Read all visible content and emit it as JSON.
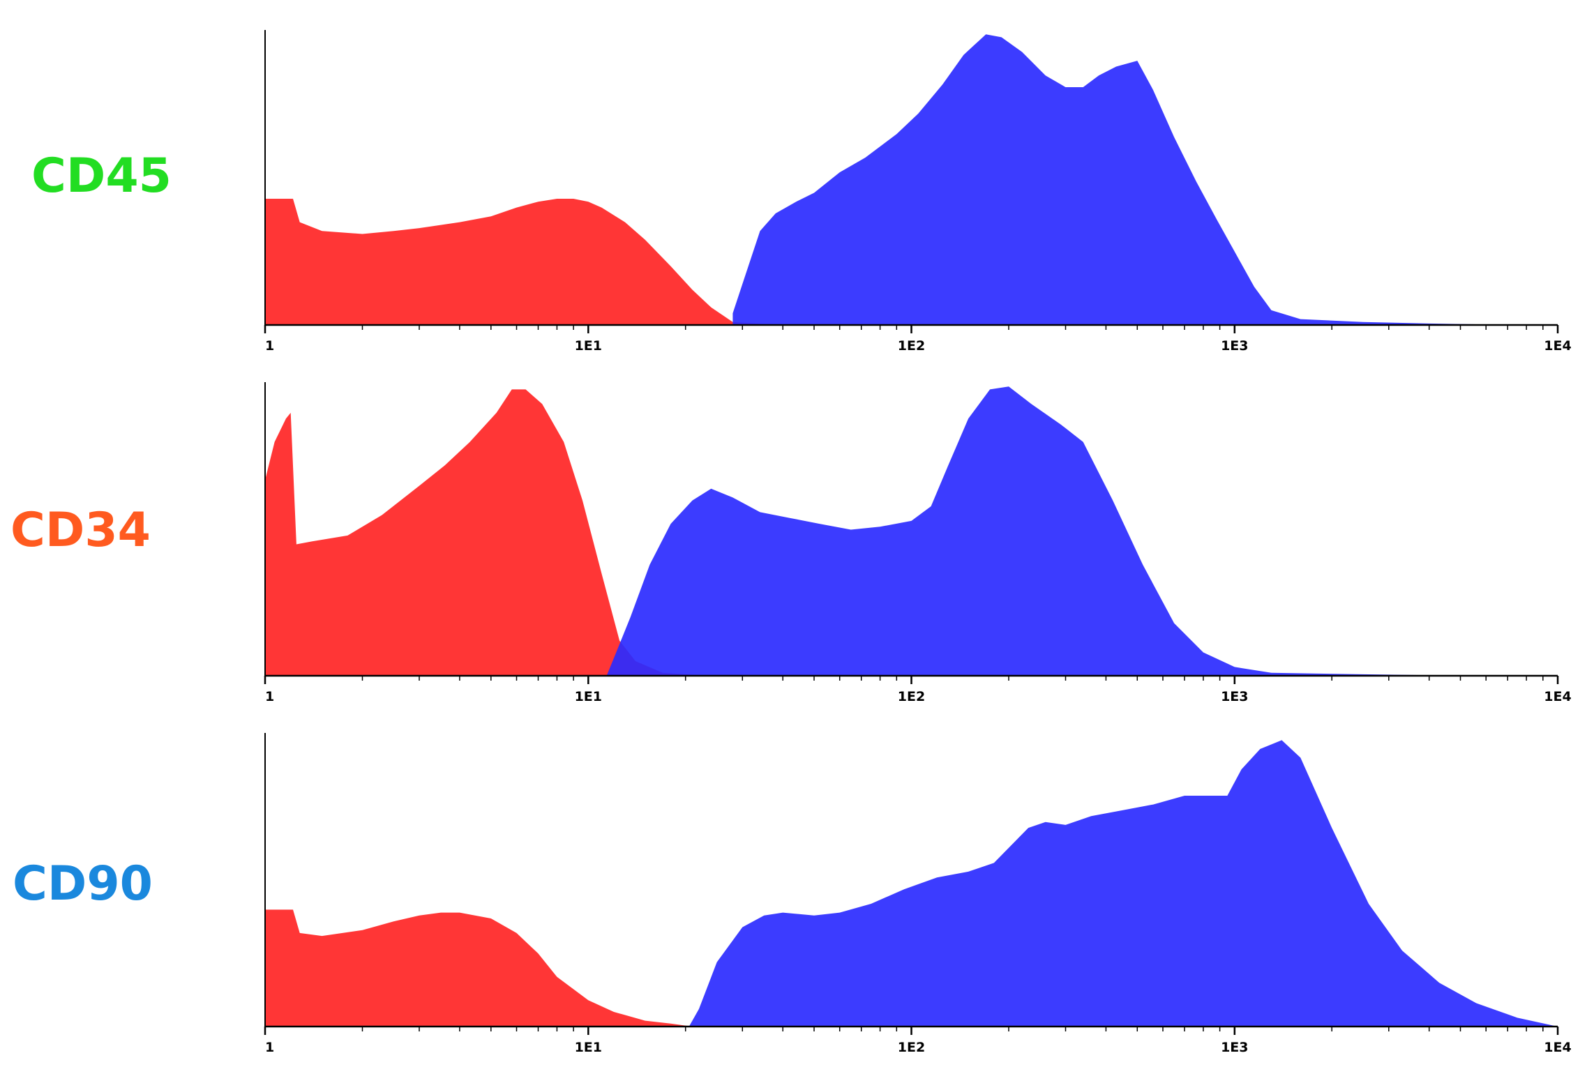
{
  "colors": {
    "isotype": "#ff2b2b",
    "marker": "#2b2bff",
    "axis": "#000000"
  },
  "x_ticks": [
    "1",
    "1E1",
    "1E2",
    "1E3",
    "1E4"
  ],
  "chart_data": [
    {
      "type": "area",
      "label": "CD45",
      "label_color": "#22dd22",
      "xscale": "log",
      "xlim": [
        1,
        10000
      ],
      "ylim": [
        0,
        1
      ],
      "x_ticks": [
        "1",
        "1E1",
        "1E2",
        "1E3",
        "1E4"
      ],
      "grid": false,
      "series": [
        {
          "color": "#ff2b2b",
          "points": [
            [
              1,
              0.43
            ],
            [
              1.22,
              0.43
            ],
            [
              1.28,
              0.35
            ],
            [
              1.5,
              0.32
            ],
            [
              2,
              0.31
            ],
            [
              2.5,
              0.32
            ],
            [
              3,
              0.33
            ],
            [
              4,
              0.35
            ],
            [
              5,
              0.37
            ],
            [
              6,
              0.4
            ],
            [
              7,
              0.42
            ],
            [
              8,
              0.43
            ],
            [
              9,
              0.43
            ],
            [
              10,
              0.42
            ],
            [
              11,
              0.4
            ],
            [
              13,
              0.35
            ],
            [
              15,
              0.29
            ],
            [
              18,
              0.2
            ],
            [
              21,
              0.12
            ],
            [
              24,
              0.06
            ],
            [
              28,
              0.01
            ],
            [
              35,
              0.003
            ],
            [
              50,
              0
            ]
          ]
        },
        {
          "color": "#2b2bff",
          "points": [
            [
              28,
              0
            ],
            [
              28,
              0.04
            ],
            [
              30,
              0.14
            ],
            [
              34,
              0.32
            ],
            [
              38,
              0.38
            ],
            [
              44,
              0.42
            ],
            [
              50,
              0.45
            ],
            [
              60,
              0.52
            ],
            [
              72,
              0.57
            ],
            [
              90,
              0.65
            ],
            [
              105,
              0.72
            ],
            [
              125,
              0.82
            ],
            [
              145,
              0.92
            ],
            [
              170,
              0.99
            ],
            [
              190,
              0.98
            ],
            [
              220,
              0.93
            ],
            [
              260,
              0.85
            ],
            [
              300,
              0.81
            ],
            [
              340,
              0.81
            ],
            [
              380,
              0.85
            ],
            [
              430,
              0.88
            ],
            [
              500,
              0.9
            ],
            [
              560,
              0.8
            ],
            [
              650,
              0.64
            ],
            [
              760,
              0.49
            ],
            [
              880,
              0.36
            ],
            [
              1000,
              0.25
            ],
            [
              1150,
              0.13
            ],
            [
              1300,
              0.05
            ],
            [
              1600,
              0.02
            ],
            [
              2500,
              0.01
            ],
            [
              4000,
              0.005
            ],
            [
              6000,
              0.002
            ],
            [
              10000,
              0
            ]
          ]
        }
      ]
    },
    {
      "type": "area",
      "label": "CD34",
      "label_color": "#ff5a1f",
      "xscale": "log",
      "xlim": [
        1,
        10000
      ],
      "ylim": [
        0,
        1
      ],
      "x_ticks": [
        "1",
        "1E1",
        "1E2",
        "1E3",
        "1E4"
      ],
      "grid": false,
      "series": [
        {
          "color": "#ff2b2b",
          "points": [
            [
              1,
              0.67
            ],
            [
              1.07,
              0.8
            ],
            [
              1.16,
              0.88
            ],
            [
              1.2,
              0.9
            ],
            [
              1.25,
              0.45
            ],
            [
              1.4,
              0.46
            ],
            [
              1.8,
              0.48
            ],
            [
              2.3,
              0.55
            ],
            [
              3,
              0.65
            ],
            [
              3.6,
              0.72
            ],
            [
              4.3,
              0.8
            ],
            [
              5.2,
              0.9
            ],
            [
              5.8,
              0.98
            ],
            [
              6.4,
              0.98
            ],
            [
              7.2,
              0.93
            ],
            [
              8.4,
              0.8
            ],
            [
              9.6,
              0.6
            ],
            [
              11,
              0.35
            ],
            [
              12.5,
              0.12
            ],
            [
              14,
              0.05
            ],
            [
              17,
              0.01
            ],
            [
              22,
              0.002
            ],
            [
              30,
              0
            ]
          ]
        },
        {
          "color": "#2b2bff",
          "points": [
            [
              11.4,
              0
            ],
            [
              12,
              0.06
            ],
            [
              13.5,
              0.2
            ],
            [
              15.5,
              0.38
            ],
            [
              18,
              0.52
            ],
            [
              21,
              0.6
            ],
            [
              24,
              0.64
            ],
            [
              28,
              0.61
            ],
            [
              34,
              0.56
            ],
            [
              42,
              0.54
            ],
            [
              52,
              0.52
            ],
            [
              65,
              0.5
            ],
            [
              80,
              0.51
            ],
            [
              100,
              0.53
            ],
            [
              115,
              0.58
            ],
            [
              130,
              0.72
            ],
            [
              150,
              0.88
            ],
            [
              175,
              0.98
            ],
            [
              200,
              0.99
            ],
            [
              235,
              0.93
            ],
            [
              290,
              0.86
            ],
            [
              340,
              0.8
            ],
            [
              420,
              0.6
            ],
            [
              520,
              0.38
            ],
            [
              650,
              0.18
            ],
            [
              800,
              0.08
            ],
            [
              1000,
              0.03
            ],
            [
              1300,
              0.01
            ],
            [
              2500,
              0.005
            ],
            [
              4000,
              0.002
            ],
            [
              6000,
              0.002
            ],
            [
              10000,
              0
            ]
          ]
        }
      ]
    },
    {
      "type": "area",
      "label": "CD90",
      "label_color": "#1a88dd",
      "xscale": "log",
      "xlim": [
        1,
        10000
      ],
      "ylim": [
        0,
        1
      ],
      "x_ticks": [
        "1",
        "1E1",
        "1E2",
        "1E3",
        "1E4"
      ],
      "grid": false,
      "series": [
        {
          "color": "#ff2b2b",
          "points": [
            [
              1,
              0.4
            ],
            [
              1.22,
              0.4
            ],
            [
              1.28,
              0.32
            ],
            [
              1.5,
              0.31
            ],
            [
              2,
              0.33
            ],
            [
              2.5,
              0.36
            ],
            [
              3,
              0.38
            ],
            [
              3.5,
              0.39
            ],
            [
              4,
              0.39
            ],
            [
              5,
              0.37
            ],
            [
              6,
              0.32
            ],
            [
              7,
              0.25
            ],
            [
              8,
              0.17
            ],
            [
              10,
              0.09
            ],
            [
              12,
              0.05
            ],
            [
              15,
              0.02
            ],
            [
              18,
              0.01
            ],
            [
              21,
              0
            ]
          ]
        },
        {
          "color": "#2b2bff",
          "points": [
            [
              20.5,
              0
            ],
            [
              22,
              0.06
            ],
            [
              25,
              0.22
            ],
            [
              30,
              0.34
            ],
            [
              35,
              0.38
            ],
            [
              40,
              0.39
            ],
            [
              50,
              0.38
            ],
            [
              60,
              0.39
            ],
            [
              75,
              0.42
            ],
            [
              95,
              0.47
            ],
            [
              120,
              0.51
            ],
            [
              150,
              0.53
            ],
            [
              180,
              0.56
            ],
            [
              230,
              0.68
            ],
            [
              260,
              0.7
            ],
            [
              300,
              0.69
            ],
            [
              360,
              0.72
            ],
            [
              450,
              0.74
            ],
            [
              560,
              0.76
            ],
            [
              700,
              0.79
            ],
            [
              850,
              0.79
            ],
            [
              950,
              0.79
            ],
            [
              1050,
              0.88
            ],
            [
              1200,
              0.95
            ],
            [
              1400,
              0.98
            ],
            [
              1600,
              0.92
            ],
            [
              2000,
              0.68
            ],
            [
              2600,
              0.42
            ],
            [
              3300,
              0.26
            ],
            [
              4300,
              0.15
            ],
            [
              5600,
              0.08
            ],
            [
              7500,
              0.03
            ],
            [
              10000,
              0
            ]
          ]
        }
      ]
    }
  ]
}
